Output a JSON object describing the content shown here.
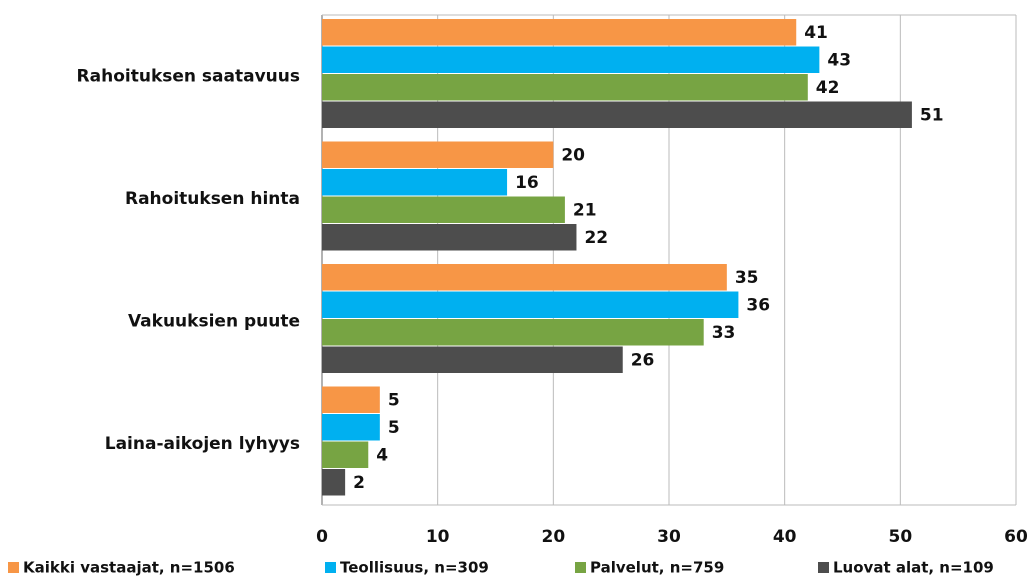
{
  "chart_data": {
    "type": "hbar",
    "categories": [
      "Rahoituksen saatavuus",
      "Rahoituksen hinta",
      "Vakuuksien puute",
      "Laina-aikojen lyhyys"
    ],
    "series": [
      {
        "name": "Kaikki vastaajat, n=1506",
        "color": "#f79646",
        "values": [
          41,
          20,
          35,
          5
        ]
      },
      {
        "name": "Teollisuus, n=309",
        "color": "#00b0f0",
        "values": [
          43,
          16,
          36,
          5
        ]
      },
      {
        "name": "Palvelut, n=759",
        "color": "#77a443",
        "values": [
          42,
          21,
          33,
          4
        ]
      },
      {
        "name": "Luovat alat, n=109",
        "color": "#4d4d4d",
        "values": [
          51,
          22,
          26,
          2
        ]
      }
    ],
    "xlim": [
      0,
      60
    ],
    "xticks": [
      0,
      10,
      20,
      30,
      40,
      50,
      60
    ],
    "grid": true
  }
}
